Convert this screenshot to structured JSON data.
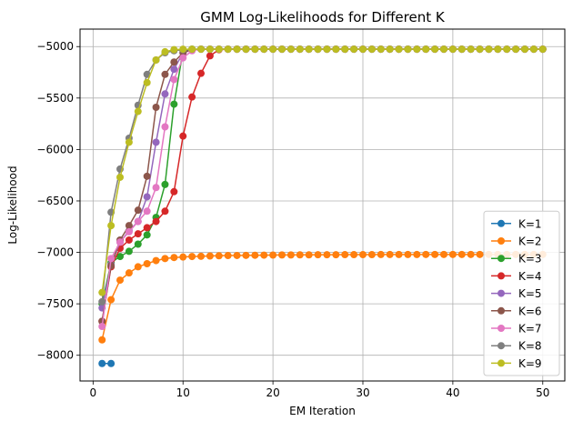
{
  "chart_data": {
    "type": "line",
    "title": "GMM Log-Likelihoods for Different K",
    "xlabel": "EM Iteration",
    "ylabel": "Log-Likelihood",
    "xlim": [
      -1.45,
      52.45
    ],
    "ylim": [
      -8250,
      -4830
    ],
    "xticks": [
      0,
      10,
      20,
      30,
      40,
      50
    ],
    "yticks": [
      -8000,
      -7500,
      -7000,
      -6500,
      -6000,
      -5500,
      -5000
    ],
    "grid": true,
    "legend_position": "lower right",
    "series": [
      {
        "name": "K=1",
        "color": "#1f77b4",
        "x": [
          1,
          2
        ],
        "values": [
          -8080,
          -8080
        ]
      },
      {
        "name": "K=2",
        "color": "#ff7f0e",
        "x": [
          1,
          2,
          3,
          4,
          5,
          6,
          7,
          8,
          9,
          10,
          11,
          12,
          13,
          14,
          15,
          16,
          17,
          18,
          19,
          20,
          21,
          22,
          23,
          24,
          25,
          26,
          27,
          28,
          29,
          30,
          31,
          32,
          33,
          34,
          35,
          36,
          37,
          38,
          39,
          40,
          41,
          42,
          43,
          44,
          45,
          46,
          47,
          48,
          49,
          50
        ],
        "values": [
          -7850,
          -7460,
          -7270,
          -7200,
          -7140,
          -7110,
          -7080,
          -7060,
          -7050,
          -7045,
          -7040,
          -7038,
          -7035,
          -7033,
          -7031,
          -7030,
          -7029,
          -7028,
          -7027,
          -7026,
          -7025,
          -7025,
          -7024,
          -7024,
          -7023,
          -7023,
          -7023,
          -7022,
          -7022,
          -7022,
          -7022,
          -7021,
          -7021,
          -7021,
          -7021,
          -7021,
          -7020,
          -7020,
          -7020,
          -7020,
          -7020,
          -7020,
          -7020,
          -7020,
          -7020,
          -7020,
          -7020,
          -7020,
          -7020,
          -7020
        ]
      },
      {
        "name": "K=3",
        "color": "#2ca02c",
        "x": [
          1,
          2,
          3,
          4,
          5,
          6,
          7,
          8,
          9,
          10,
          11,
          12,
          13,
          14,
          15,
          16,
          17,
          18,
          19,
          20,
          21,
          22,
          23,
          24,
          25,
          26,
          27,
          28,
          29,
          30,
          31,
          32,
          33,
          34,
          35,
          36,
          37,
          38,
          39,
          40,
          41,
          42,
          43,
          44,
          45,
          46,
          47,
          48,
          49,
          50
        ],
        "values": [
          -7500,
          -7100,
          -7040,
          -6990,
          -6920,
          -6830,
          -6660,
          -6340,
          -5560,
          -5040,
          -5025,
          -5025,
          -5025,
          -5025,
          -5025,
          -5025,
          -5025,
          -5025,
          -5025,
          -5025,
          -5025,
          -5025,
          -5025,
          -5025,
          -5025,
          -5025,
          -5025,
          -5025,
          -5025,
          -5025,
          -5025,
          -5025,
          -5025,
          -5025,
          -5025,
          -5025,
          -5025,
          -5025,
          -5025,
          -5025,
          -5025,
          -5025,
          -5025,
          -5025,
          -5025,
          -5025,
          -5025,
          -5025,
          -5025,
          -5025
        ]
      },
      {
        "name": "K=4",
        "color": "#d62728",
        "x": [
          1,
          2,
          3,
          4,
          5,
          6,
          7,
          8,
          9,
          10,
          11,
          12,
          13,
          14,
          15,
          16,
          17,
          18,
          19,
          20,
          21,
          22,
          23,
          24,
          25,
          26,
          27,
          28,
          29,
          30,
          31,
          32,
          33,
          34,
          35,
          36,
          37,
          38,
          39,
          40,
          41,
          42,
          43,
          44,
          45,
          46,
          47,
          48,
          49,
          50
        ],
        "values": [
          -7670,
          -7140,
          -6960,
          -6880,
          -6820,
          -6760,
          -6700,
          -6600,
          -6410,
          -5870,
          -5490,
          -5260,
          -5090,
          -5030,
          -5025,
          -5025,
          -5025,
          -5025,
          -5025,
          -5025,
          -5025,
          -5025,
          -5025,
          -5025,
          -5025,
          -5025,
          -5025,
          -5025,
          -5025,
          -5025,
          -5025,
          -5025,
          -5025,
          -5025,
          -5025,
          -5025,
          -5025,
          -5025,
          -5025,
          -5025,
          -5025,
          -5025,
          -5025,
          -5025,
          -5025,
          -5025,
          -5025,
          -5025,
          -5025,
          -5025
        ]
      },
      {
        "name": "K=5",
        "color": "#9467bd",
        "x": [
          1,
          2,
          3,
          4,
          5,
          6,
          7,
          8,
          9,
          10,
          11,
          12,
          13,
          14,
          15,
          16,
          17,
          18,
          19,
          20,
          21,
          22,
          23,
          24,
          25,
          26,
          27,
          28,
          29,
          30,
          31,
          32,
          33,
          34,
          35,
          36,
          37,
          38,
          39,
          40,
          41,
          42,
          43,
          44,
          45,
          46,
          47,
          48,
          49,
          50
        ],
        "values": [
          -7540,
          -7120,
          -6900,
          -6790,
          -6700,
          -6460,
          -5930,
          -5460,
          -5220,
          -5060,
          -5030,
          -5025,
          -5025,
          -5025,
          -5025,
          -5025,
          -5025,
          -5025,
          -5025,
          -5025,
          -5025,
          -5025,
          -5025,
          -5025,
          -5025,
          -5025,
          -5025,
          -5025,
          -5025,
          -5025,
          -5025,
          -5025,
          -5025,
          -5025,
          -5025,
          -5025,
          -5025,
          -5025,
          -5025,
          -5025,
          -5025,
          -5025,
          -5025,
          -5025,
          -5025,
          -5025,
          -5025,
          -5025,
          -5025,
          -5025
        ]
      },
      {
        "name": "K=6",
        "color": "#8c564b",
        "x": [
          1,
          2,
          3,
          4,
          5,
          6,
          7,
          8,
          9,
          10,
          11,
          12,
          13,
          14,
          15,
          16,
          17,
          18,
          19,
          20,
          21,
          22,
          23,
          24,
          25,
          26,
          27,
          28,
          29,
          30,
          31,
          32,
          33,
          34,
          35,
          36,
          37,
          38,
          39,
          40,
          41,
          42,
          43,
          44,
          45,
          46,
          47,
          48,
          49,
          50
        ],
        "values": [
          -7670,
          -7130,
          -6880,
          -6740,
          -6590,
          -6260,
          -5590,
          -5270,
          -5150,
          -5060,
          -5030,
          -5025,
          -5025,
          -5025,
          -5025,
          -5025,
          -5025,
          -5025,
          -5025,
          -5025,
          -5025,
          -5025,
          -5025,
          -5025,
          -5025,
          -5025,
          -5025,
          -5025,
          -5025,
          -5025,
          -5025,
          -5025,
          -5025,
          -5025,
          -5025,
          -5025,
          -5025,
          -5025,
          -5025,
          -5025,
          -5025,
          -5025,
          -5025,
          -5025,
          -5025,
          -5025,
          -5025,
          -5025,
          -5025,
          -5025
        ]
      },
      {
        "name": "K=7",
        "color": "#e377c2",
        "x": [
          1,
          2,
          3,
          4,
          5,
          6,
          7,
          8,
          9,
          10,
          11,
          12,
          13,
          14,
          15,
          16,
          17,
          18,
          19,
          20,
          21,
          22,
          23,
          24,
          25,
          26,
          27,
          28,
          29,
          30,
          31,
          32,
          33,
          34,
          35,
          36,
          37,
          38,
          39,
          40,
          41,
          42,
          43,
          44,
          45,
          46,
          47,
          48,
          49,
          50
        ],
        "values": [
          -7720,
          -7060,
          -6900,
          -6800,
          -6700,
          -6600,
          -6370,
          -5780,
          -5320,
          -5110,
          -5040,
          -5025,
          -5025,
          -5025,
          -5025,
          -5025,
          -5025,
          -5025,
          -5025,
          -5025,
          -5025,
          -5025,
          -5025,
          -5025,
          -5025,
          -5025,
          -5025,
          -5025,
          -5025,
          -5025,
          -5025,
          -5025,
          -5025,
          -5025,
          -5025,
          -5025,
          -5025,
          -5025,
          -5025,
          -5025,
          -5025,
          -5025,
          -5025,
          -5025,
          -5025,
          -5025,
          -5025,
          -5025,
          -5025,
          -5025
        ]
      },
      {
        "name": "K=8",
        "color": "#7f7f7f",
        "x": [
          1,
          2,
          3,
          4,
          5,
          6,
          7,
          8,
          9,
          10,
          11,
          12,
          13,
          14,
          15,
          16,
          17,
          18,
          19,
          20,
          21,
          22,
          23,
          24,
          25,
          26,
          27,
          28,
          29,
          30,
          31,
          32,
          33,
          34,
          35,
          36,
          37,
          38,
          39,
          40,
          41,
          42,
          43,
          44,
          45,
          46,
          47,
          48,
          49,
          50
        ],
        "values": [
          -7480,
          -6610,
          -6190,
          -5890,
          -5570,
          -5270,
          -5130,
          -5060,
          -5040,
          -5030,
          -5025,
          -5025,
          -5025,
          -5025,
          -5025,
          -5025,
          -5025,
          -5025,
          -5025,
          -5025,
          -5025,
          -5025,
          -5025,
          -5025,
          -5025,
          -5025,
          -5025,
          -5025,
          -5025,
          -5025,
          -5025,
          -5025,
          -5025,
          -5025,
          -5025,
          -5025,
          -5025,
          -5025,
          -5025,
          -5025,
          -5025,
          -5025,
          -5025,
          -5025,
          -5025,
          -5025,
          -5025,
          -5025,
          -5025,
          -5025
        ]
      },
      {
        "name": "K=9",
        "color": "#bcbd22",
        "x": [
          1,
          2,
          3,
          4,
          5,
          6,
          7,
          8,
          9,
          10,
          11,
          12,
          13,
          14,
          15,
          16,
          17,
          18,
          19,
          20,
          21,
          22,
          23,
          24,
          25,
          26,
          27,
          28,
          29,
          30,
          31,
          32,
          33,
          34,
          35,
          36,
          37,
          38,
          39,
          40,
          41,
          42,
          43,
          44,
          45,
          46,
          47,
          48,
          49,
          50
        ],
        "values": [
          -7390,
          -6740,
          -6270,
          -5930,
          -5630,
          -5350,
          -5130,
          -5050,
          -5030,
          -5025,
          -5025,
          -5025,
          -5025,
          -5025,
          -5025,
          -5025,
          -5025,
          -5025,
          -5025,
          -5025,
          -5025,
          -5025,
          -5025,
          -5025,
          -5025,
          -5025,
          -5025,
          -5025,
          -5025,
          -5025,
          -5025,
          -5025,
          -5025,
          -5025,
          -5025,
          -5025,
          -5025,
          -5025,
          -5025,
          -5025,
          -5025,
          -5025,
          -5025,
          -5025,
          -5025,
          -5025,
          -5025,
          -5025,
          -5025,
          -5025
        ]
      }
    ]
  }
}
